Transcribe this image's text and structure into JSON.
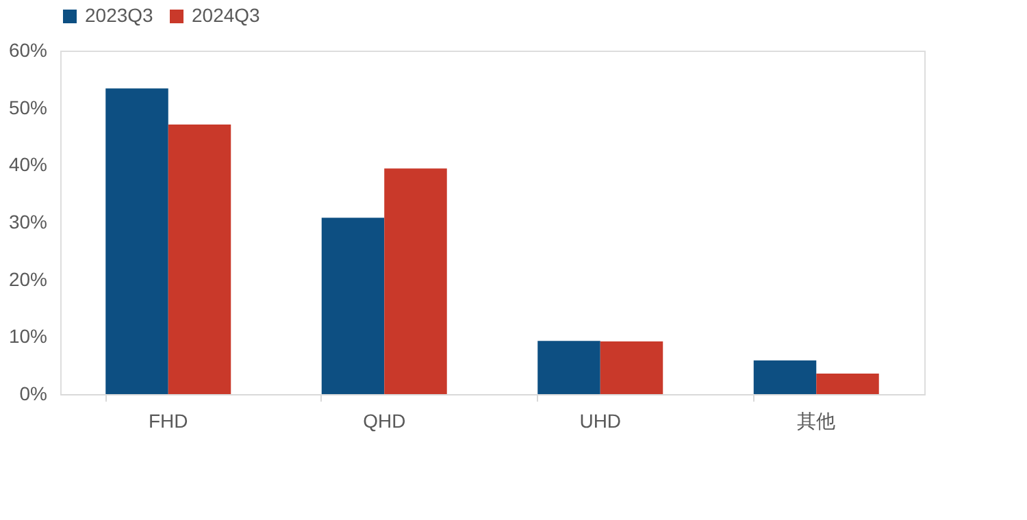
{
  "chart_data": {
    "type": "bar",
    "categories": [
      "FHD",
      "QHD",
      "UHD",
      "其他"
    ],
    "series": [
      {
        "name": "2023Q3",
        "color": "#0d4f82",
        "values": [
          53.4,
          30.8,
          9.3,
          5.9
        ]
      },
      {
        "name": "2024Q3",
        "color": "#c9392a",
        "values": [
          47.1,
          39.4,
          9.2,
          3.6
        ]
      }
    ],
    "ylim": [
      0,
      60
    ],
    "yticks": [
      {
        "value": 0,
        "label": "0%"
      },
      {
        "value": 10,
        "label": "10%"
      },
      {
        "value": 20,
        "label": "20%"
      },
      {
        "value": 30,
        "label": "30%"
      },
      {
        "value": 40,
        "label": "40%"
      },
      {
        "value": 50,
        "label": "50%"
      },
      {
        "value": 60,
        "label": "60%"
      }
    ],
    "grid": false,
    "legend": "top"
  }
}
